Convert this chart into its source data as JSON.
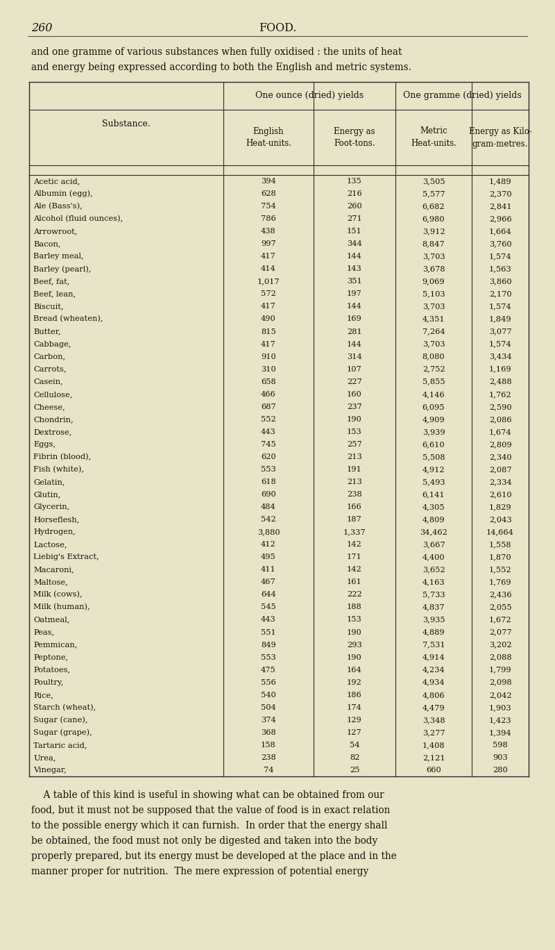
{
  "page_num": "260",
  "page_title": "FOOD.",
  "intro_line1": "and one gramme of various substances when fully oxidised : the units of heat",
  "intro_line2": "and energy being expressed according to both the English and metric systems.",
  "rows": [
    [
      "Acetic acid,",
      "394",
      "135",
      "3,505",
      "1,489"
    ],
    [
      "Albumin (egg),",
      "628",
      "216",
      "5,577",
      "2,370"
    ],
    [
      "Ale (Bass's),",
      "754",
      "260",
      "6,682",
      "2,841"
    ],
    [
      "Alcohol (fluid ounces),",
      "786",
      "271",
      "6,980",
      "2,966"
    ],
    [
      "Arrowroot,",
      "438",
      "151",
      "3,912",
      "1,664"
    ],
    [
      "Bacon,",
      "997",
      "344",
      "8,847",
      "3,760"
    ],
    [
      "Barley meal,",
      "417",
      "144",
      "3,703",
      "1,574"
    ],
    [
      "Barley (pearl),",
      "414",
      "143",
      "3,678",
      "1,563"
    ],
    [
      "Beef, fat,",
      "1,017",
      "351",
      "9,069",
      "3,860"
    ],
    [
      "Beef, lean,",
      "572",
      "197",
      "5,103",
      "2,170"
    ],
    [
      "Biscuit,",
      "417",
      "144",
      "3,703",
      "1,574"
    ],
    [
      "Bread (wheaten),",
      "490",
      "169",
      "4,351",
      "1,849"
    ],
    [
      "Butter,",
      "815",
      "281",
      "7,264",
      "3,077"
    ],
    [
      "Cabbage,",
      "417",
      "144",
      "3,703",
      "1,574"
    ],
    [
      "Carbon,",
      "910",
      "314",
      "8,080",
      "3,434"
    ],
    [
      "Carrots,",
      "310",
      "107",
      "2,752",
      "1,169"
    ],
    [
      "Casein,",
      "658",
      "227",
      "5,855",
      "2,488"
    ],
    [
      "Cellulose,",
      "466",
      "160",
      "4,146",
      "1,762"
    ],
    [
      "Cheese,",
      "687",
      "237",
      "6,095",
      "2,590"
    ],
    [
      "Chondrin,",
      "552",
      "190",
      "4,909",
      "2,086"
    ],
    [
      "Dextrose,",
      "443",
      "153",
      "3,939",
      "1,674"
    ],
    [
      "Eggs,",
      "745",
      "257",
      "6,610",
      "2,809"
    ],
    [
      "Fibrin (blood),",
      "620",
      "213",
      "5,508",
      "2,340"
    ],
    [
      "Fish (white),",
      "553",
      "191",
      "4,912",
      "2,087"
    ],
    [
      "Gelatin,",
      "618",
      "213",
      "5,493",
      "2,334"
    ],
    [
      "Glutin,",
      "690",
      "238",
      "6,141",
      "2,610"
    ],
    [
      "Glycerin,",
      "484",
      "166",
      "4,305",
      "1,829"
    ],
    [
      "Horseflesh,",
      "542",
      "187",
      "4,809",
      "2,043"
    ],
    [
      "Hydrogen,",
      "3,880",
      "1,337",
      "34,462",
      "14,664"
    ],
    [
      "Lactose,",
      "412",
      "142",
      "3,667",
      "1,558"
    ],
    [
      "Liebig's Extract,",
      "495",
      "171",
      "4,400",
      "1,870"
    ],
    [
      "Macaroni,",
      "411",
      "142",
      "3,652",
      "1,552"
    ],
    [
      "Maltose,",
      "467",
      "161",
      "4,163",
      "1,769"
    ],
    [
      "Milk (cows),",
      "644",
      "222",
      "5,733",
      "2,436"
    ],
    [
      "Milk (human),",
      "545",
      "188",
      "4,837",
      "2,055"
    ],
    [
      "Oatmeal,",
      "443",
      "153",
      "3,935",
      "1,672"
    ],
    [
      "Peas,",
      "551",
      "190",
      "4,889",
      "2,077"
    ],
    [
      "Pemmican,",
      "849",
      "293",
      "7,531",
      "3,202"
    ],
    [
      "Peptone,",
      "553",
      "190",
      "4,914",
      "2,088"
    ],
    [
      "Potatoes,",
      "475",
      "164",
      "4,234",
      "1,799"
    ],
    [
      "Poultry,",
      "556",
      "192",
      "4,934",
      "2,098"
    ],
    [
      "Rice,",
      "540",
      "186",
      "4,806",
      "2,042"
    ],
    [
      "Starch (wheat),",
      "504",
      "174",
      "4,479",
      "1,903"
    ],
    [
      "Sugar (cane),",
      "374",
      "129",
      "3,348",
      "1,423"
    ],
    [
      "Sugar (grape),",
      "368",
      "127",
      "3,277",
      "1,394"
    ],
    [
      "Tartaric acid,",
      "158",
      "54",
      "1,408",
      "598"
    ],
    [
      "Urea,",
      "238",
      "82",
      "2,121",
      "903"
    ],
    [
      "Vinegar,",
      "74",
      "25",
      "660",
      "280"
    ]
  ],
  "footer_lines": [
    "    A table of this kind is useful in showing what can be obtained from our",
    "food, but it must not be supposed that the value of food is in exact relation",
    "to the possible energy which it can furnish.  In order that the energy shall",
    "be obtained, the food must not only be digested and taken into the body",
    "properly prepared, but its energy must be developed at the place and in the",
    "manner proper for nutrition.  The mere expression of potential energy"
  ],
  "bg_color": "#e8e4c8",
  "text_color": "#1a1008",
  "line_color": "#2a2a2a"
}
